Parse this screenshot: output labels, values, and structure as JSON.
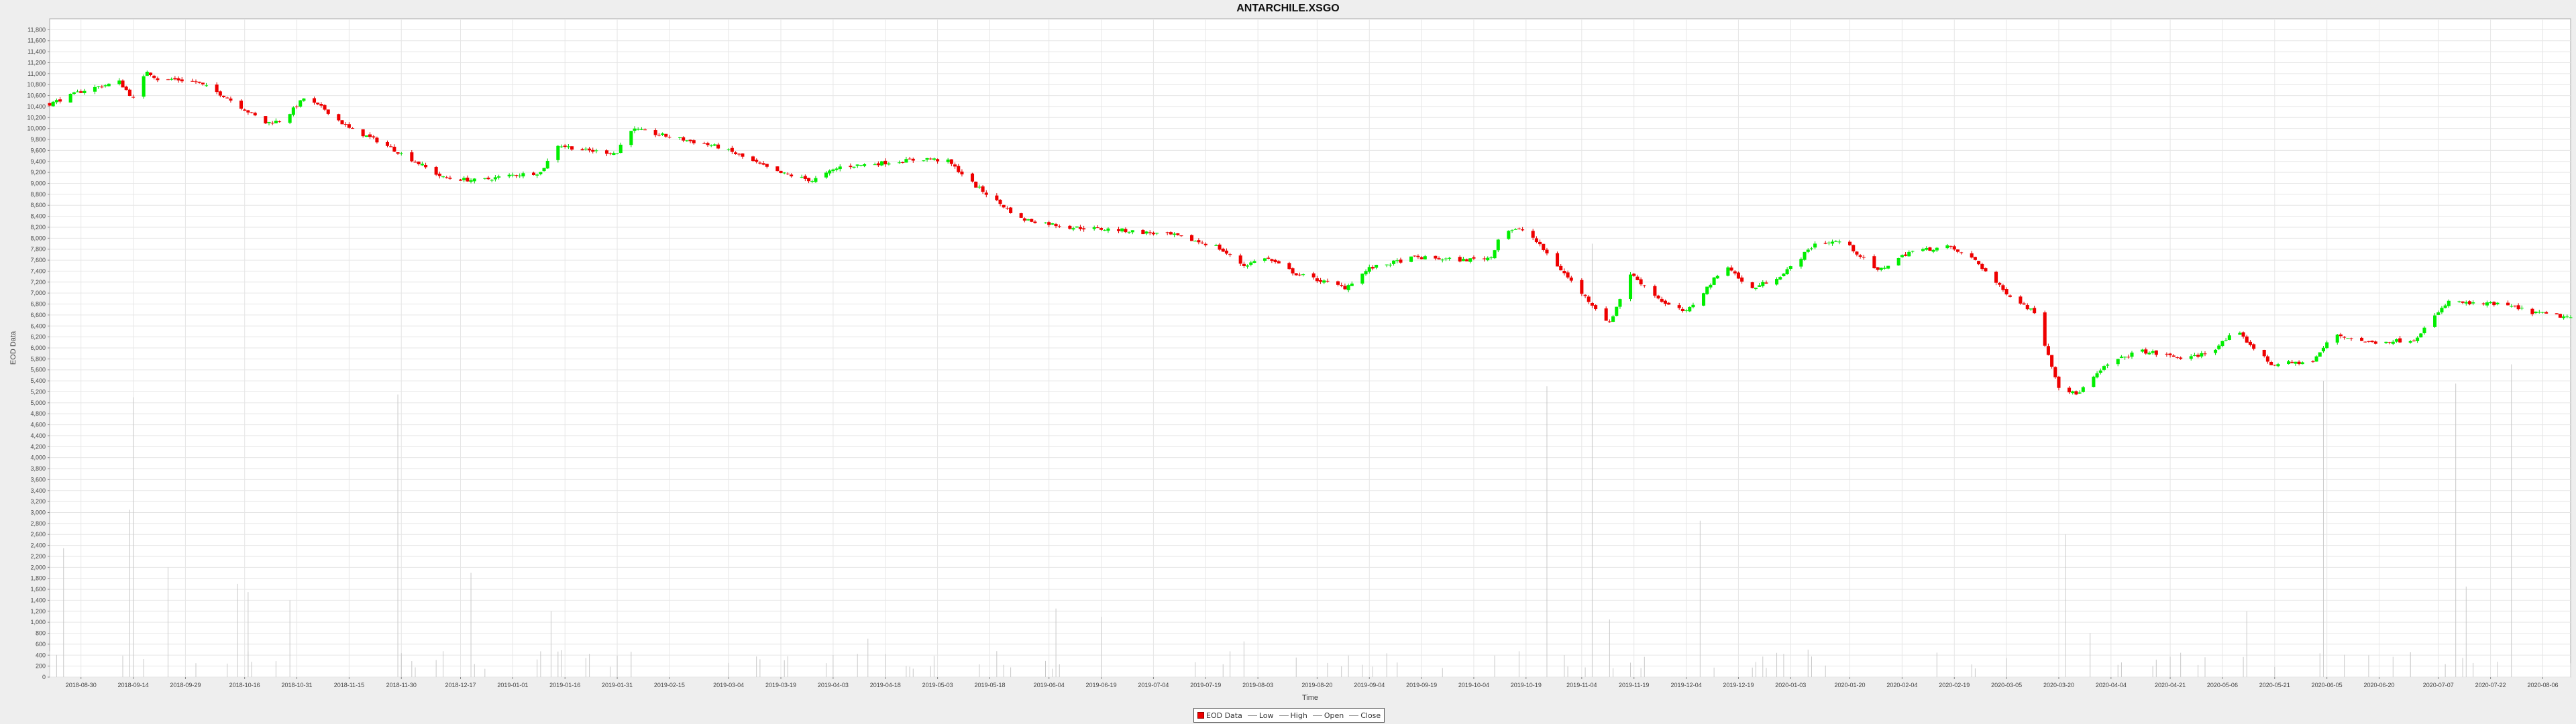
{
  "chart_data": {
    "type": "candlestick",
    "title": "ANTARCHILE.XSGO",
    "xlabel": "Time",
    "ylabel": "EOD Data",
    "ylim": [
      0,
      12000
    ],
    "y_ticks": [
      0,
      200,
      400,
      600,
      800,
      1000,
      1200,
      1400,
      1600,
      1800,
      2000,
      2200,
      2400,
      2600,
      2800,
      3000,
      3200,
      3400,
      3600,
      3800,
      4000,
      4200,
      4400,
      4600,
      4800,
      5000,
      5200,
      5400,
      5600,
      5800,
      6000,
      6200,
      6400,
      6600,
      6800,
      7000,
      7200,
      7400,
      7600,
      7800,
      8000,
      8200,
      8400,
      8600,
      8800,
      9000,
      9200,
      9400,
      9600,
      9800,
      10000,
      10200,
      10400,
      10600,
      10800,
      11000,
      11200,
      11400,
      11600,
      11800
    ],
    "y_tick_labels": [
      "0",
      "200",
      "400",
      "600",
      "800",
      "1,000",
      "1,200",
      "1,400",
      "1,600",
      "1,800",
      "2,000",
      "2,200",
      "2,400",
      "2,600",
      "2,800",
      "3,000",
      "3,200",
      "3,400",
      "3,600",
      "3,800",
      "4,000",
      "4,200",
      "4,400",
      "4,600",
      "4,800",
      "5,000",
      "5,200",
      "5,400",
      "5,600",
      "5,800",
      "6,000",
      "6,200",
      "6,400",
      "6,600",
      "6,800",
      "7,000",
      "7,200",
      "7,400",
      "7,600",
      "7,800",
      "8,000",
      "8,200",
      "8,400",
      "8,600",
      "8,800",
      "9,000",
      "9,200",
      "9,400",
      "9,600",
      "9,800",
      "10,000",
      "10,200",
      "10,400",
      "10,600",
      "10,800",
      "11,000",
      "11,200",
      "11,400",
      "11,600",
      "11,800"
    ],
    "x_range": [
      "2018-08-21",
      "2020-08-14"
    ],
    "x_ticks": [
      "2018-08-30",
      "2018-09-14",
      "2018-09-29",
      "2018-10-16",
      "2018-10-31",
      "2018-11-15",
      "2018-11-30",
      "2018-12-17",
      "2019-01-01",
      "2019-01-16",
      "2019-01-31",
      "2019-02-15",
      "2019-03-04",
      "2019-03-19",
      "2019-04-03",
      "2019-04-18",
      "2019-05-03",
      "2019-05-18",
      "2019-06-04",
      "2019-06-19",
      "2019-07-04",
      "2019-07-19",
      "2019-08-03",
      "2019-08-20",
      "2019-09-04",
      "2019-09-19",
      "2019-10-04",
      "2019-10-19",
      "2019-11-04",
      "2019-11-19",
      "2019-12-04",
      "2019-12-19",
      "2020-01-03",
      "2020-01-20",
      "2020-02-04",
      "2020-02-19",
      "2020-03-05",
      "2020-03-20",
      "2020-04-04",
      "2020-04-21",
      "2020-05-06",
      "2020-05-21",
      "2020-06-05",
      "2020-06-20",
      "2020-07-07",
      "2020-07-22",
      "2020-08-06"
    ],
    "grid": true,
    "legend_position": "bottom-center",
    "legend": [
      "EOD Data",
      "Low",
      "High",
      "Open",
      "Close"
    ],
    "colors": {
      "up": "#00ee00",
      "down": "#ee0000",
      "wick_up": "#00cc00",
      "wick_down": "#dd0000",
      "volume": "#c8c8c8",
      "grid": "#e6e6e6",
      "plot_bg": "#ffffff",
      "page_bg": "#eeeeee",
      "axis_text": "#444444",
      "title": "#111111"
    },
    "price_path": [
      [
        "2018-08-21",
        10450
      ],
      [
        "2018-08-31",
        10700
      ],
      [
        "2018-09-10",
        10850
      ],
      [
        "2018-09-14",
        10550
      ],
      [
        "2018-09-18",
        11050
      ],
      [
        "2018-09-22",
        10850
      ],
      [
        "2018-09-25",
        10900
      ],
      [
        "2018-10-02",
        10850
      ],
      [
        "2018-10-10",
        10600
      ],
      [
        "2018-10-22",
        10100
      ],
      [
        "2018-10-27",
        10150
      ],
      [
        "2018-11-02",
        10550
      ],
      [
        "2018-11-08",
        10350
      ],
      [
        "2018-11-15",
        10000
      ],
      [
        "2018-11-24",
        9750
      ],
      [
        "2018-12-04",
        9400
      ],
      [
        "2018-12-12",
        9100
      ],
      [
        "2018-12-22",
        9050
      ],
      [
        "2019-01-01",
        9150
      ],
      [
        "2019-01-09",
        9200
      ],
      [
        "2019-01-14",
        9700
      ],
      [
        "2019-01-22",
        9600
      ],
      [
        "2019-01-31",
        9550
      ],
      [
        "2019-02-03",
        10000
      ],
      [
        "2019-02-15",
        9850
      ],
      [
        "2019-03-02",
        9650
      ],
      [
        "2019-03-18",
        9200
      ],
      [
        "2019-03-28",
        9050
      ],
      [
        "2019-04-05",
        9300
      ],
      [
        "2019-04-30",
        9450
      ],
      [
        "2019-05-06",
        9400
      ],
      [
        "2019-05-14",
        8950
      ],
      [
        "2019-05-27",
        8350
      ],
      [
        "2019-06-10",
        8200
      ],
      [
        "2019-06-24",
        8150
      ],
      [
        "2019-07-10",
        8050
      ],
      [
        "2019-07-22",
        7850
      ],
      [
        "2019-07-30",
        7500
      ],
      [
        "2019-08-05",
        7650
      ],
      [
        "2019-08-14",
        7350
      ],
      [
        "2019-08-28",
        7100
      ],
      [
        "2019-09-04",
        7450
      ],
      [
        "2019-09-17",
        7650
      ],
      [
        "2019-10-01",
        7600
      ],
      [
        "2019-10-09",
        7650
      ],
      [
        "2019-10-12",
        8150
      ],
      [
        "2019-10-19",
        8150
      ],
      [
        "2019-10-28",
        7500
      ],
      [
        "2019-11-04",
        7000
      ],
      [
        "2019-11-12",
        6450
      ],
      [
        "2019-11-18",
        7350
      ],
      [
        "2019-11-28",
        6800
      ],
      [
        "2019-12-04",
        6650
      ],
      [
        "2019-12-12",
        7250
      ],
      [
        "2019-12-16",
        7500
      ],
      [
        "2019-12-22",
        7050
      ],
      [
        "2020-01-01",
        7350
      ],
      [
        "2020-01-10",
        7900
      ],
      [
        "2020-01-18",
        7950
      ],
      [
        "2020-01-28",
        7400
      ],
      [
        "2020-02-06",
        7750
      ],
      [
        "2020-02-17",
        7850
      ],
      [
        "2020-02-25",
        7600
      ],
      [
        "2020-03-04",
        7050
      ],
      [
        "2020-03-13",
        6650
      ],
      [
        "2020-03-20",
        5300
      ],
      [
        "2020-03-25",
        5150
      ],
      [
        "2020-04-03",
        5700
      ],
      [
        "2020-04-12",
        5950
      ],
      [
        "2020-04-26",
        5800
      ],
      [
        "2020-05-03",
        5950
      ],
      [
        "2020-05-10",
        6300
      ],
      [
        "2020-05-20",
        5700
      ],
      [
        "2020-06-01",
        5750
      ],
      [
        "2020-06-07",
        6250
      ],
      [
        "2020-06-17",
        6100
      ],
      [
        "2020-06-30",
        6150
      ],
      [
        "2020-07-10",
        6850
      ],
      [
        "2020-07-17",
        6800
      ],
      [
        "2020-07-25",
        6800
      ],
      [
        "2020-08-03",
        6650
      ],
      [
        "2020-08-14",
        6550
      ]
    ],
    "volume_spikes": [
      [
        "2018-08-25",
        2350
      ],
      [
        "2018-09-13",
        3050
      ],
      [
        "2018-09-14",
        5100
      ],
      [
        "2018-09-24",
        2000
      ],
      [
        "2018-10-14",
        1700
      ],
      [
        "2018-10-17",
        1550
      ],
      [
        "2018-10-29",
        1400
      ],
      [
        "2018-11-29",
        5150
      ],
      [
        "2018-12-20",
        1900
      ],
      [
        "2019-01-12",
        1200
      ],
      [
        "2019-04-13",
        700
      ],
      [
        "2019-06-06",
        1250
      ],
      [
        "2019-06-19",
        1100
      ],
      [
        "2019-07-30",
        650
      ],
      [
        "2019-10-25",
        5300
      ],
      [
        "2019-11-07",
        7900
      ],
      [
        "2019-11-12",
        1050
      ],
      [
        "2019-12-08",
        2850
      ],
      [
        "2020-03-22",
        2600
      ],
      [
        "2020-03-29",
        800
      ],
      [
        "2020-05-13",
        1200
      ],
      [
        "2020-06-04",
        5400
      ],
      [
        "2020-07-12",
        5350
      ],
      [
        "2020-07-15",
        1650
      ],
      [
        "2020-07-28",
        5700
      ]
    ]
  }
}
